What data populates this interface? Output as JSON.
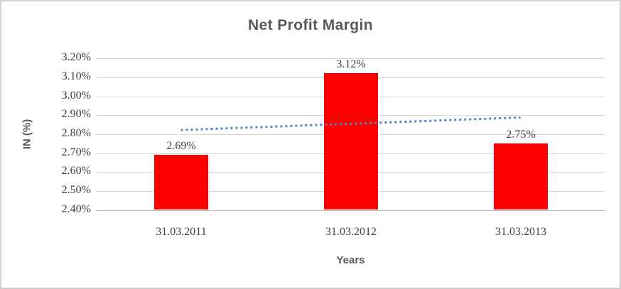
{
  "chart_data": {
    "type": "bar",
    "title": "Net Profit Margin",
    "xlabel": "Years",
    "ylabel": "IN (%)",
    "categories": [
      "31.03.2011",
      "31.03.2012",
      "31.03.2013"
    ],
    "series": [
      {
        "name": "Net Profit Margin",
        "values": [
          2.69,
          3.12,
          2.75
        ]
      }
    ],
    "data_labels": [
      "2.69%",
      "3.12%",
      "2.75%"
    ],
    "yticks": [
      "3.20%",
      "3.10%",
      "3.00%",
      "2.90%",
      "2.80%",
      "2.70%",
      "2.60%",
      "2.50%",
      "2.40%"
    ],
    "ylim": [
      2.4,
      3.2
    ],
    "grid": true,
    "legend": false,
    "colors": {
      "bar": "#ff0000",
      "trendline": "#4a86c8",
      "title_text": "#595959",
      "tick_text": "#404040"
    },
    "trendline": {
      "style": "dotted",
      "start_value": 2.822,
      "end_value": 2.888
    }
  }
}
